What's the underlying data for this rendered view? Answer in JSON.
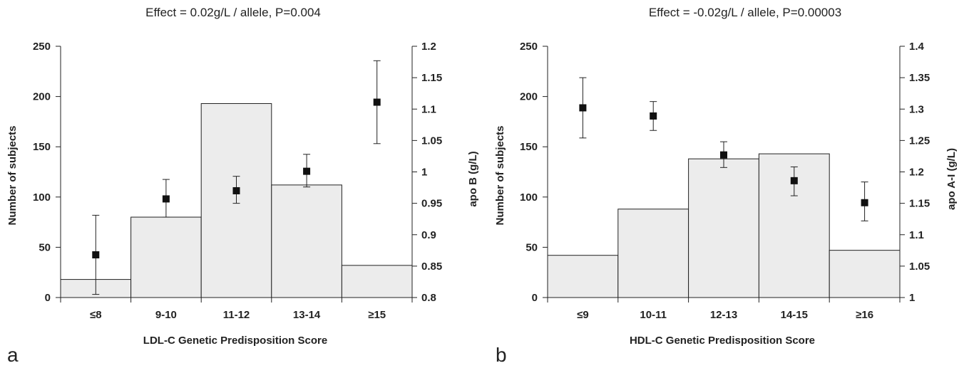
{
  "chart_data": [
    {
      "type": "bar",
      "panel_letter": "a",
      "title": "Effect = 0.02g/L / allele, P=0.004",
      "xlabel": "LDL-C Genetic Predisposition Score",
      "ylabel": "Number of subjects",
      "y2label": "apo B (g/L)",
      "categories": [
        "≤8",
        "9-10",
        "11-12",
        "13-14",
        "≥15"
      ],
      "ylim": [
        0,
        250
      ],
      "yticks": [
        "0",
        "50",
        "100",
        "150",
        "200",
        "250"
      ],
      "y2lim": [
        0.8,
        1.2
      ],
      "y2ticks": [
        "0.8",
        "0.85",
        "0.9",
        "0.95",
        "1",
        "1.05",
        "1.1",
        "1.15",
        "1.2"
      ],
      "series": [
        {
          "name": "Number of subjects",
          "axis": "left",
          "values": [
            18,
            80,
            193,
            112,
            32
          ]
        },
        {
          "name": "apo B (g/L)",
          "axis": "right",
          "kind": "point-with-error",
          "values": [
            0.868,
            0.957,
            0.97,
            1.001,
            1.111
          ],
          "lower": [
            0.805,
            0.928,
            0.95,
            0.976,
            1.045
          ],
          "upper": [
            0.931,
            0.988,
            0.993,
            1.028,
            1.177
          ]
        }
      ]
    },
    {
      "type": "bar",
      "panel_letter": "b",
      "title": "Effect = -0.02g/L / allele, P=0.00003",
      "xlabel": "HDL-C Genetic Predisposition Score",
      "ylabel": "Number of subjects",
      "y2label": "apo A-I (g/L)",
      "categories": [
        "≤9",
        "10-11",
        "12-13",
        "14-15",
        "≥16"
      ],
      "ylim": [
        0,
        250
      ],
      "yticks": [
        "0",
        "50",
        "100",
        "150",
        "200",
        "250"
      ],
      "y2lim": [
        1.0,
        1.4
      ],
      "y2ticks": [
        "1",
        "1.05",
        "1.1",
        "1.15",
        "1.2",
        "1.25",
        "1.3",
        "1.35",
        "1.4"
      ],
      "series": [
        {
          "name": "Number of subjects",
          "axis": "left",
          "values": [
            42,
            88,
            138,
            143,
            47
          ]
        },
        {
          "name": "apo A-I (g/L)",
          "axis": "right",
          "kind": "point-with-error",
          "values": [
            1.302,
            1.289,
            1.227,
            1.186,
            1.151
          ],
          "lower": [
            1.254,
            1.266,
            1.207,
            1.162,
            1.122
          ],
          "upper": [
            1.35,
            1.312,
            1.248,
            1.208,
            1.184
          ]
        }
      ]
    }
  ]
}
